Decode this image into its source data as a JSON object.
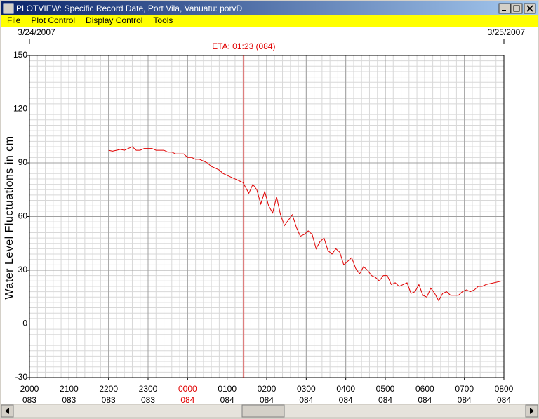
{
  "window": {
    "title": "PLOTVIEW: Specific Record Date, Port Vila, Vanuatu: porvD"
  },
  "menu": [
    "File",
    "Plot Control",
    "Display Control",
    "Tools"
  ],
  "chart_data": {
    "type": "line",
    "ylabel": "Water Level Fluctuations in cm",
    "date_labels": [
      "3/24/2007",
      "3/25/2007"
    ],
    "annotation": {
      "label": "ETA: 01:23 (084)",
      "x": 5.42,
      "color": "#e00000"
    },
    "color": "#e00000",
    "grid": true,
    "xlim": [
      0,
      12
    ],
    "ylim": [
      -30,
      150
    ],
    "yticks": [
      -30,
      0,
      30,
      60,
      90,
      120,
      150
    ],
    "xticks": [
      {
        "value": 0,
        "label": "2000",
        "day": "083"
      },
      {
        "value": 1,
        "label": "2100",
        "day": "083"
      },
      {
        "value": 2,
        "label": "2200",
        "day": "083"
      },
      {
        "value": 3,
        "label": "2300",
        "day": "083"
      },
      {
        "value": 4,
        "label": "0000",
        "day": "084",
        "color": "#e00000"
      },
      {
        "value": 5,
        "label": "0100",
        "day": "084"
      },
      {
        "value": 6,
        "label": "0200",
        "day": "084"
      },
      {
        "value": 7,
        "label": "0300",
        "day": "084"
      },
      {
        "value": 8,
        "label": "0400",
        "day": "084"
      },
      {
        "value": 9,
        "label": "0500",
        "day": "084"
      },
      {
        "value": 10,
        "label": "0600",
        "day": "084"
      },
      {
        "value": 11,
        "label": "0700",
        "day": "084"
      },
      {
        "value": 12,
        "label": "0800",
        "day": "084"
      }
    ],
    "x": [
      2.0,
      2.1,
      2.2,
      2.3,
      2.4,
      2.5,
      2.6,
      2.7,
      2.8,
      2.9,
      3.0,
      3.1,
      3.2,
      3.3,
      3.4,
      3.5,
      3.6,
      3.7,
      3.8,
      3.9,
      4.0,
      4.1,
      4.2,
      4.3,
      4.4,
      4.5,
      4.6,
      4.7,
      4.8,
      4.9,
      5.0,
      5.1,
      5.2,
      5.3,
      5.4,
      5.55,
      5.65,
      5.75,
      5.85,
      5.95,
      6.05,
      6.15,
      6.25,
      6.35,
      6.45,
      6.55,
      6.65,
      6.75,
      6.85,
      6.95,
      7.05,
      7.15,
      7.25,
      7.35,
      7.45,
      7.55,
      7.65,
      7.75,
      7.85,
      7.95,
      8.05,
      8.15,
      8.25,
      8.35,
      8.45,
      8.55,
      8.65,
      8.75,
      8.85,
      8.95,
      9.05,
      9.15,
      9.25,
      9.35,
      9.45,
      9.55,
      9.65,
      9.75,
      9.85,
      9.95,
      10.05,
      10.15,
      10.25,
      10.35,
      10.45,
      10.55,
      10.65,
      10.75,
      10.85,
      10.95,
      11.05,
      11.15,
      11.25,
      11.35,
      11.45,
      11.55,
      11.75,
      11.95
    ],
    "values": [
      97,
      96.5,
      97,
      97.5,
      97,
      98,
      99,
      97,
      97,
      98,
      98,
      98,
      97,
      97,
      97,
      96,
      96,
      95,
      95,
      95,
      93,
      93,
      92,
      92,
      91,
      90,
      88,
      87,
      86,
      84,
      83,
      82,
      81,
      80,
      79,
      73,
      78,
      75,
      67,
      74,
      66,
      62,
      71,
      61,
      55,
      58,
      61,
      54,
      49,
      50,
      52,
      50,
      42,
      46,
      48,
      41,
      39,
      42,
      40,
      33,
      35,
      37,
      31,
      28,
      32,
      30,
      27,
      26,
      24,
      27,
      27,
      22,
      23,
      21,
      22,
      23,
      17,
      18,
      22,
      16,
      15,
      20,
      17,
      13,
      17,
      18,
      16,
      16,
      16,
      18,
      19,
      18,
      19,
      21,
      21,
      22,
      23,
      24
    ]
  }
}
